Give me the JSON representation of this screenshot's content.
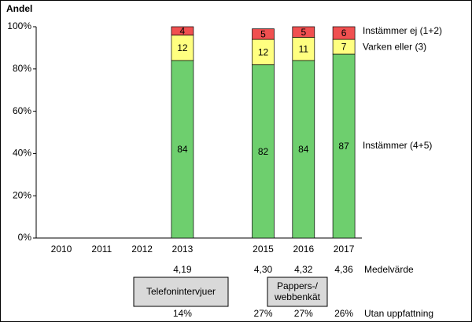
{
  "chart_data": {
    "type": "stacked_bar",
    "y_axis_title": "Andel",
    "categories": [
      "2010",
      "2011",
      "2012",
      "2013",
      null,
      "2015",
      "2016",
      "2017"
    ],
    "series": [
      {
        "name": "Instämmer (4+5)",
        "color": "#6ecf6e",
        "values": [
          null,
          null,
          null,
          84,
          null,
          82,
          84,
          87
        ]
      },
      {
        "name": "Varken eller (3)",
        "color": "#ffff80",
        "values": [
          null,
          null,
          null,
          12,
          null,
          12,
          11,
          7
        ]
      },
      {
        "name": "Instämmer ej (1+2)",
        "color": "#f05050",
        "values": [
          null,
          null,
          null,
          4,
          null,
          5,
          5,
          6
        ]
      }
    ],
    "ylim": [
      0,
      100
    ],
    "yticks": [
      {
        "value": 0,
        "label": "0%"
      },
      {
        "value": 20,
        "label": "20%"
      },
      {
        "value": 40,
        "label": "40%"
      },
      {
        "value": 60,
        "label": "60%"
      },
      {
        "value": 80,
        "label": "80%"
      },
      {
        "value": 100,
        "label": "100%"
      }
    ],
    "rows": [
      {
        "label": "Medelvärde",
        "values": [
          null,
          null,
          null,
          "4,19",
          null,
          "4,30",
          "4,32",
          "4,36"
        ]
      },
      {
        "label": "Utan uppfattning",
        "values": [
          null,
          null,
          null,
          "14%",
          null,
          "27%",
          "27%",
          "26%"
        ]
      }
    ],
    "method_boxes": [
      "Telefonintervjuer",
      "Pappers-/\nwebbenkät"
    ]
  }
}
